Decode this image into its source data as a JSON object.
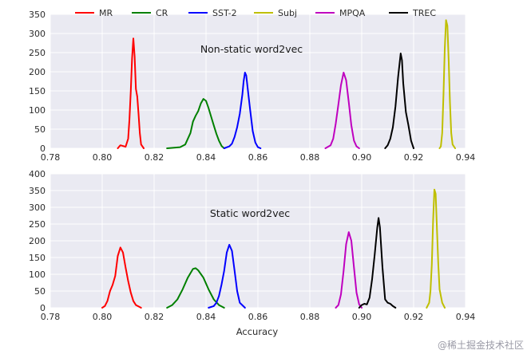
{
  "chart_data": [
    {
      "type": "line",
      "title": "",
      "annotation": "Non-static word2vec",
      "xlabel": "",
      "ylabel": "",
      "xlim": [
        0.78,
        0.94
      ],
      "ylim": [
        0,
        350
      ],
      "xticks": [
        "0.78",
        "0.80",
        "0.82",
        "0.84",
        "0.86",
        "0.88",
        "0.90",
        "0.92",
        "0.94"
      ],
      "yticks": [
        "0",
        "50",
        "100",
        "150",
        "200",
        "250",
        "300",
        "350"
      ],
      "grid": true,
      "legend": "top",
      "series": [
        {
          "name": "MR",
          "color": "#ff0000",
          "points": [
            [
              0.806,
              0
            ],
            [
              0.8065,
              4
            ],
            [
              0.807,
              8
            ],
            [
              0.8085,
              5
            ],
            [
              0.809,
              4
            ],
            [
              0.81,
              25
            ],
            [
              0.8105,
              75
            ],
            [
              0.811,
              150
            ],
            [
              0.8115,
              235
            ],
            [
              0.812,
              287
            ],
            [
              0.8125,
              240
            ],
            [
              0.813,
              155
            ],
            [
              0.8135,
              135
            ],
            [
              0.814,
              90
            ],
            [
              0.8145,
              40
            ],
            [
              0.815,
              10
            ],
            [
              0.816,
              0
            ]
          ]
        },
        {
          "name": "CR",
          "color": "#008000",
          "points": [
            [
              0.825,
              0
            ],
            [
              0.83,
              3
            ],
            [
              0.832,
              10
            ],
            [
              0.834,
              40
            ],
            [
              0.835,
              70
            ],
            [
              0.836,
              85
            ],
            [
              0.837,
              97
            ],
            [
              0.838,
              117
            ],
            [
              0.839,
              129
            ],
            [
              0.84,
              124
            ],
            [
              0.841,
              105
            ],
            [
              0.842,
              82
            ],
            [
              0.843,
              60
            ],
            [
              0.844,
              38
            ],
            [
              0.845,
              20
            ],
            [
              0.846,
              6
            ],
            [
              0.847,
              0
            ]
          ]
        },
        {
          "name": "SST-2",
          "color": "#0000ff",
          "points": [
            [
              0.847,
              0
            ],
            [
              0.849,
              5
            ],
            [
              0.85,
              12
            ],
            [
              0.851,
              30
            ],
            [
              0.852,
              55
            ],
            [
              0.853,
              90
            ],
            [
              0.854,
              140
            ],
            [
              0.8545,
              175
            ],
            [
              0.855,
              198
            ],
            [
              0.8555,
              190
            ],
            [
              0.856,
              160
            ],
            [
              0.857,
              100
            ],
            [
              0.858,
              45
            ],
            [
              0.859,
              15
            ],
            [
              0.86,
              3
            ],
            [
              0.861,
              0
            ]
          ]
        },
        {
          "name": "Subj",
          "color": "#bfbf00",
          "points": [
            [
              0.93,
              0
            ],
            [
              0.9305,
              5
            ],
            [
              0.931,
              40
            ],
            [
              0.9315,
              140
            ],
            [
              0.932,
              260
            ],
            [
              0.9325,
              335
            ],
            [
              0.933,
              320
            ],
            [
              0.9335,
              230
            ],
            [
              0.934,
              120
            ],
            [
              0.9345,
              40
            ],
            [
              0.935,
              10
            ],
            [
              0.936,
              0
            ]
          ]
        },
        {
          "name": "MPQA",
          "color": "#bf00bf",
          "points": [
            [
              0.886,
              0
            ],
            [
              0.888,
              8
            ],
            [
              0.889,
              25
            ],
            [
              0.89,
              65
            ],
            [
              0.891,
              115
            ],
            [
              0.892,
              165
            ],
            [
              0.893,
              198
            ],
            [
              0.894,
              178
            ],
            [
              0.895,
              120
            ],
            [
              0.896,
              60
            ],
            [
              0.897,
              20
            ],
            [
              0.898,
              5
            ],
            [
              0.899,
              0
            ]
          ]
        },
        {
          "name": "TREC",
          "color": "#000000",
          "points": [
            [
              0.909,
              0
            ],
            [
              0.91,
              8
            ],
            [
              0.911,
              25
            ],
            [
              0.912,
              55
            ],
            [
              0.913,
              110
            ],
            [
              0.914,
              185
            ],
            [
              0.915,
              248
            ],
            [
              0.9155,
              230
            ],
            [
              0.916,
              170
            ],
            [
              0.917,
              95
            ],
            [
              0.918,
              60
            ],
            [
              0.919,
              20
            ],
            [
              0.92,
              0
            ]
          ]
        }
      ]
    },
    {
      "type": "line",
      "title": "",
      "annotation": "Static word2vec",
      "xlabel": "Accuracy",
      "ylabel": "",
      "xlim": [
        0.78,
        0.94
      ],
      "ylim": [
        0,
        400
      ],
      "xticks": [
        "0.78",
        "0.80",
        "0.82",
        "0.84",
        "0.86",
        "0.88",
        "0.90",
        "0.92",
        "0.94"
      ],
      "yticks": [
        "0",
        "50",
        "100",
        "150",
        "200",
        "250",
        "300",
        "350",
        "400"
      ],
      "grid": true,
      "legend": "none",
      "series": [
        {
          "name": "MR",
          "color": "#ff0000",
          "points": [
            [
              0.8,
              0
            ],
            [
              0.801,
              5
            ],
            [
              0.802,
              20
            ],
            [
              0.803,
              50
            ],
            [
              0.804,
              68
            ],
            [
              0.805,
              95
            ],
            [
              0.806,
              155
            ],
            [
              0.807,
              180
            ],
            [
              0.808,
              165
            ],
            [
              0.809,
              120
            ],
            [
              0.81,
              80
            ],
            [
              0.811,
              45
            ],
            [
              0.812,
              20
            ],
            [
              0.813,
              8
            ],
            [
              0.815,
              0
            ]
          ]
        },
        {
          "name": "CR",
          "color": "#008000",
          "points": [
            [
              0.825,
              0
            ],
            [
              0.827,
              8
            ],
            [
              0.829,
              25
            ],
            [
              0.831,
              55
            ],
            [
              0.833,
              90
            ],
            [
              0.835,
              116
            ],
            [
              0.836,
              118
            ],
            [
              0.837,
              112
            ],
            [
              0.839,
              90
            ],
            [
              0.841,
              55
            ],
            [
              0.843,
              25
            ],
            [
              0.845,
              8
            ],
            [
              0.847,
              0
            ]
          ]
        },
        {
          "name": "SST-2",
          "color": "#0000ff",
          "points": [
            [
              0.841,
              0
            ],
            [
              0.843,
              5
            ],
            [
              0.844,
              15
            ],
            [
              0.845,
              35
            ],
            [
              0.846,
              70
            ],
            [
              0.847,
              110
            ],
            [
              0.848,
              165
            ],
            [
              0.849,
              188
            ],
            [
              0.85,
              170
            ],
            [
              0.851,
              110
            ],
            [
              0.852,
              50
            ],
            [
              0.853,
              15
            ],
            [
              0.855,
              0
            ]
          ]
        },
        {
          "name": "Subj",
          "color": "#bfbf00",
          "points": [
            [
              0.925,
              0
            ],
            [
              0.926,
              15
            ],
            [
              0.9265,
              50
            ],
            [
              0.927,
              130
            ],
            [
              0.9275,
              260
            ],
            [
              0.928,
              353
            ],
            [
              0.9285,
              340
            ],
            [
              0.929,
              230
            ],
            [
              0.9295,
              130
            ],
            [
              0.93,
              55
            ],
            [
              0.931,
              15
            ],
            [
              0.932,
              0
            ]
          ]
        },
        {
          "name": "MPQA",
          "color": "#bf00bf",
          "points": [
            [
              0.89,
              0
            ],
            [
              0.891,
              8
            ],
            [
              0.892,
              40
            ],
            [
              0.893,
              110
            ],
            [
              0.894,
              190
            ],
            [
              0.895,
              226
            ],
            [
              0.896,
              200
            ],
            [
              0.897,
              120
            ],
            [
              0.898,
              45
            ],
            [
              0.899,
              10
            ],
            [
              0.9,
              0
            ]
          ]
        },
        {
          "name": "TREC",
          "color": "#000000",
          "points": [
            [
              0.899,
              0
            ],
            [
              0.9,
              8
            ],
            [
              0.901,
              12
            ],
            [
              0.902,
              10
            ],
            [
              0.903,
              30
            ],
            [
              0.904,
              85
            ],
            [
              0.905,
              160
            ],
            [
              0.906,
              240
            ],
            [
              0.9065,
              268
            ],
            [
              0.907,
              240
            ],
            [
              0.908,
              120
            ],
            [
              0.909,
              25
            ],
            [
              0.91,
              15
            ],
            [
              0.911,
              12
            ],
            [
              0.912,
              5
            ],
            [
              0.913,
              0
            ]
          ]
        }
      ]
    }
  ],
  "legend_items": [
    "MR",
    "CR",
    "SST-2",
    "Subj",
    "MPQA",
    "TREC"
  ],
  "watermark": "@稀土掘金技术社区"
}
